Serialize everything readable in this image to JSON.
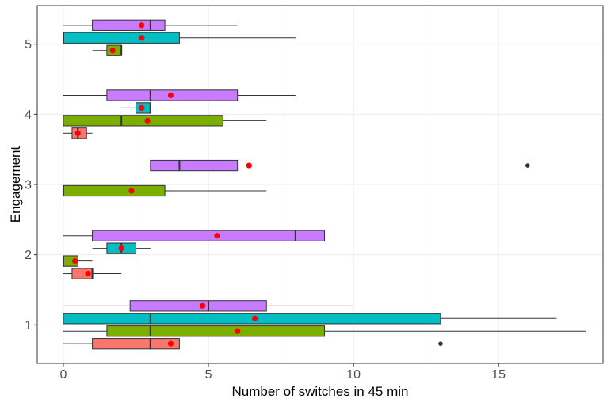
{
  "chart_data": {
    "type": "boxplot",
    "orientation": "horizontal",
    "xlabel": "Number of switches in 45 min",
    "ylabel": "Engagement",
    "xlim": [
      -0.9,
      18.6
    ],
    "ylim": [
      0.45,
      5.55
    ],
    "x_ticks": [
      0,
      5,
      10,
      15
    ],
    "x_tick_labels": [
      "0",
      "5",
      "10",
      "15"
    ],
    "y_ticks": [
      1,
      2,
      3,
      4,
      5
    ],
    "y_tick_labels": [
      "1",
      "2",
      "3",
      "4",
      "5"
    ],
    "grid": true,
    "legend": "none",
    "group_colors": [
      "#F8766D",
      "#7CAE00",
      "#00BFC4",
      "#C77CFF"
    ],
    "mean_color": "#FF0000",
    "outlier_color": "#333333",
    "boxes": [
      {
        "engagement": 1,
        "group": 0,
        "whisker_low": 0,
        "q1": 1,
        "median": 3,
        "q3": 4,
        "whisker_high": 4,
        "mean": 3.7,
        "outliers": [
          13
        ]
      },
      {
        "engagement": 1,
        "group": 1,
        "whisker_low": 0,
        "q1": 1.5,
        "median": 3,
        "q3": 9,
        "whisker_high": 18,
        "mean": 6,
        "outliers": []
      },
      {
        "engagement": 1,
        "group": 2,
        "whisker_low": 0,
        "q1": 0,
        "median": 3,
        "q3": 13,
        "whisker_high": 17,
        "mean": 6.6,
        "outliers": []
      },
      {
        "engagement": 1,
        "group": 3,
        "whisker_low": 0,
        "q1": 2.3,
        "median": 5,
        "q3": 7,
        "whisker_high": 10,
        "mean": 4.8,
        "outliers": []
      },
      {
        "engagement": 2,
        "group": 0,
        "whisker_low": 0,
        "q1": 0.3,
        "median": 1,
        "q3": 1,
        "whisker_high": 2,
        "mean": 0.85,
        "outliers": []
      },
      {
        "engagement": 2,
        "group": 1,
        "whisker_low": 0,
        "q1": 0,
        "median": 0,
        "q3": 0.5,
        "whisker_high": 1,
        "mean": 0.4,
        "outliers": []
      },
      {
        "engagement": 2,
        "group": 2,
        "whisker_low": 1,
        "q1": 1.5,
        "median": 2,
        "q3": 2.5,
        "whisker_high": 3,
        "mean": 2,
        "outliers": []
      },
      {
        "engagement": 2,
        "group": 3,
        "whisker_low": 0,
        "q1": 1,
        "median": 8,
        "q3": 9,
        "whisker_high": 9,
        "mean": 5.3,
        "outliers": []
      },
      {
        "engagement": 3,
        "group": 1,
        "whisker_low": 0,
        "q1": 0,
        "median": 0,
        "q3": 3.5,
        "whisker_high": 7,
        "mean": 2.35,
        "outliers": []
      },
      {
        "engagement": 3,
        "group": 3,
        "whisker_low": 3,
        "q1": 3,
        "median": 4,
        "q3": 6,
        "whisker_high": 6,
        "mean": 6.4,
        "outliers": [
          16
        ]
      },
      {
        "engagement": 4,
        "group": 0,
        "whisker_low": 0,
        "q1": 0.3,
        "median": 0.5,
        "q3": 0.8,
        "whisker_high": 1,
        "mean": 0.5,
        "outliers": []
      },
      {
        "engagement": 4,
        "group": 1,
        "whisker_low": 0,
        "q1": 0,
        "median": 2,
        "q3": 5.5,
        "whisker_high": 7,
        "mean": 2.9,
        "outliers": []
      },
      {
        "engagement": 4,
        "group": 2,
        "whisker_low": 2,
        "q1": 2.5,
        "median": 3,
        "q3": 3,
        "whisker_high": 3,
        "mean": 2.7,
        "outliers": []
      },
      {
        "engagement": 4,
        "group": 3,
        "whisker_low": 0,
        "q1": 1.5,
        "median": 3,
        "q3": 6,
        "whisker_high": 8,
        "mean": 3.7,
        "outliers": []
      },
      {
        "engagement": 5,
        "group": 1,
        "whisker_low": 1,
        "q1": 1.5,
        "median": 2,
        "q3": 2,
        "whisker_high": 2,
        "mean": 1.7,
        "outliers": []
      },
      {
        "engagement": 5,
        "group": 2,
        "whisker_low": 0,
        "q1": 0,
        "median": 0,
        "q3": 4,
        "whisker_high": 8,
        "mean": 2.7,
        "outliers": []
      },
      {
        "engagement": 5,
        "group": 3,
        "whisker_low": 0,
        "q1": 1,
        "median": 3,
        "q3": 3.5,
        "whisker_high": 6,
        "mean": 2.7,
        "outliers": []
      }
    ]
  }
}
